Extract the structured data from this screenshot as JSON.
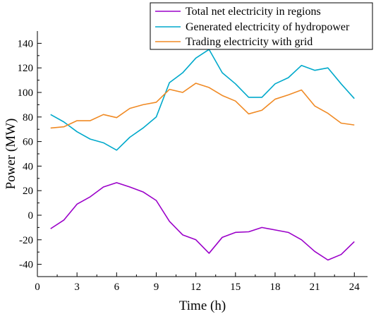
{
  "chart_data": {
    "type": "line",
    "xlabel": "Time (h)",
    "ylabel": "Power (MW)",
    "xlim": [
      0,
      25
    ],
    "ylim": [
      -50,
      150
    ],
    "xticks": [
      0,
      3,
      6,
      9,
      12,
      15,
      18,
      21,
      24
    ],
    "yticks": [
      -40,
      -20,
      0,
      20,
      40,
      60,
      80,
      100,
      120,
      140
    ],
    "grid": false,
    "legend_position": "top-right",
    "x": [
      1,
      2,
      3,
      4,
      5,
      6,
      7,
      8,
      9,
      10,
      11,
      12,
      13,
      14,
      15,
      16,
      17,
      18,
      19,
      20,
      21,
      22,
      23,
      24
    ],
    "series": [
      {
        "name": "Total net electricity in regions",
        "color": "#9b00c9",
        "values": [
          -11,
          -4,
          9,
          15,
          23,
          26.5,
          23,
          19,
          12,
          -5,
          -16,
          -20,
          -31,
          -18,
          -14,
          -13.5,
          -10,
          -12,
          -14,
          -20,
          -29.5,
          -36.5,
          -32,
          -21.5
        ]
      },
      {
        "name": "Generated electricity of hydropower",
        "color": "#00a9cb",
        "values": [
          82,
          76,
          68,
          62,
          59,
          53,
          63.5,
          71,
          80,
          108,
          116,
          128,
          135,
          116,
          107,
          96,
          96,
          107,
          112,
          122,
          118,
          120,
          107,
          95
        ]
      },
      {
        "name": "Trading electricity with grid",
        "color": "#f08a24",
        "values": [
          71,
          72,
          77,
          77,
          82,
          79.5,
          87,
          90,
          92,
          102.5,
          100,
          107.5,
          104,
          97.5,
          93,
          82.5,
          85.5,
          94.5,
          98,
          102,
          89,
          83,
          75,
          73.5
        ]
      }
    ]
  }
}
